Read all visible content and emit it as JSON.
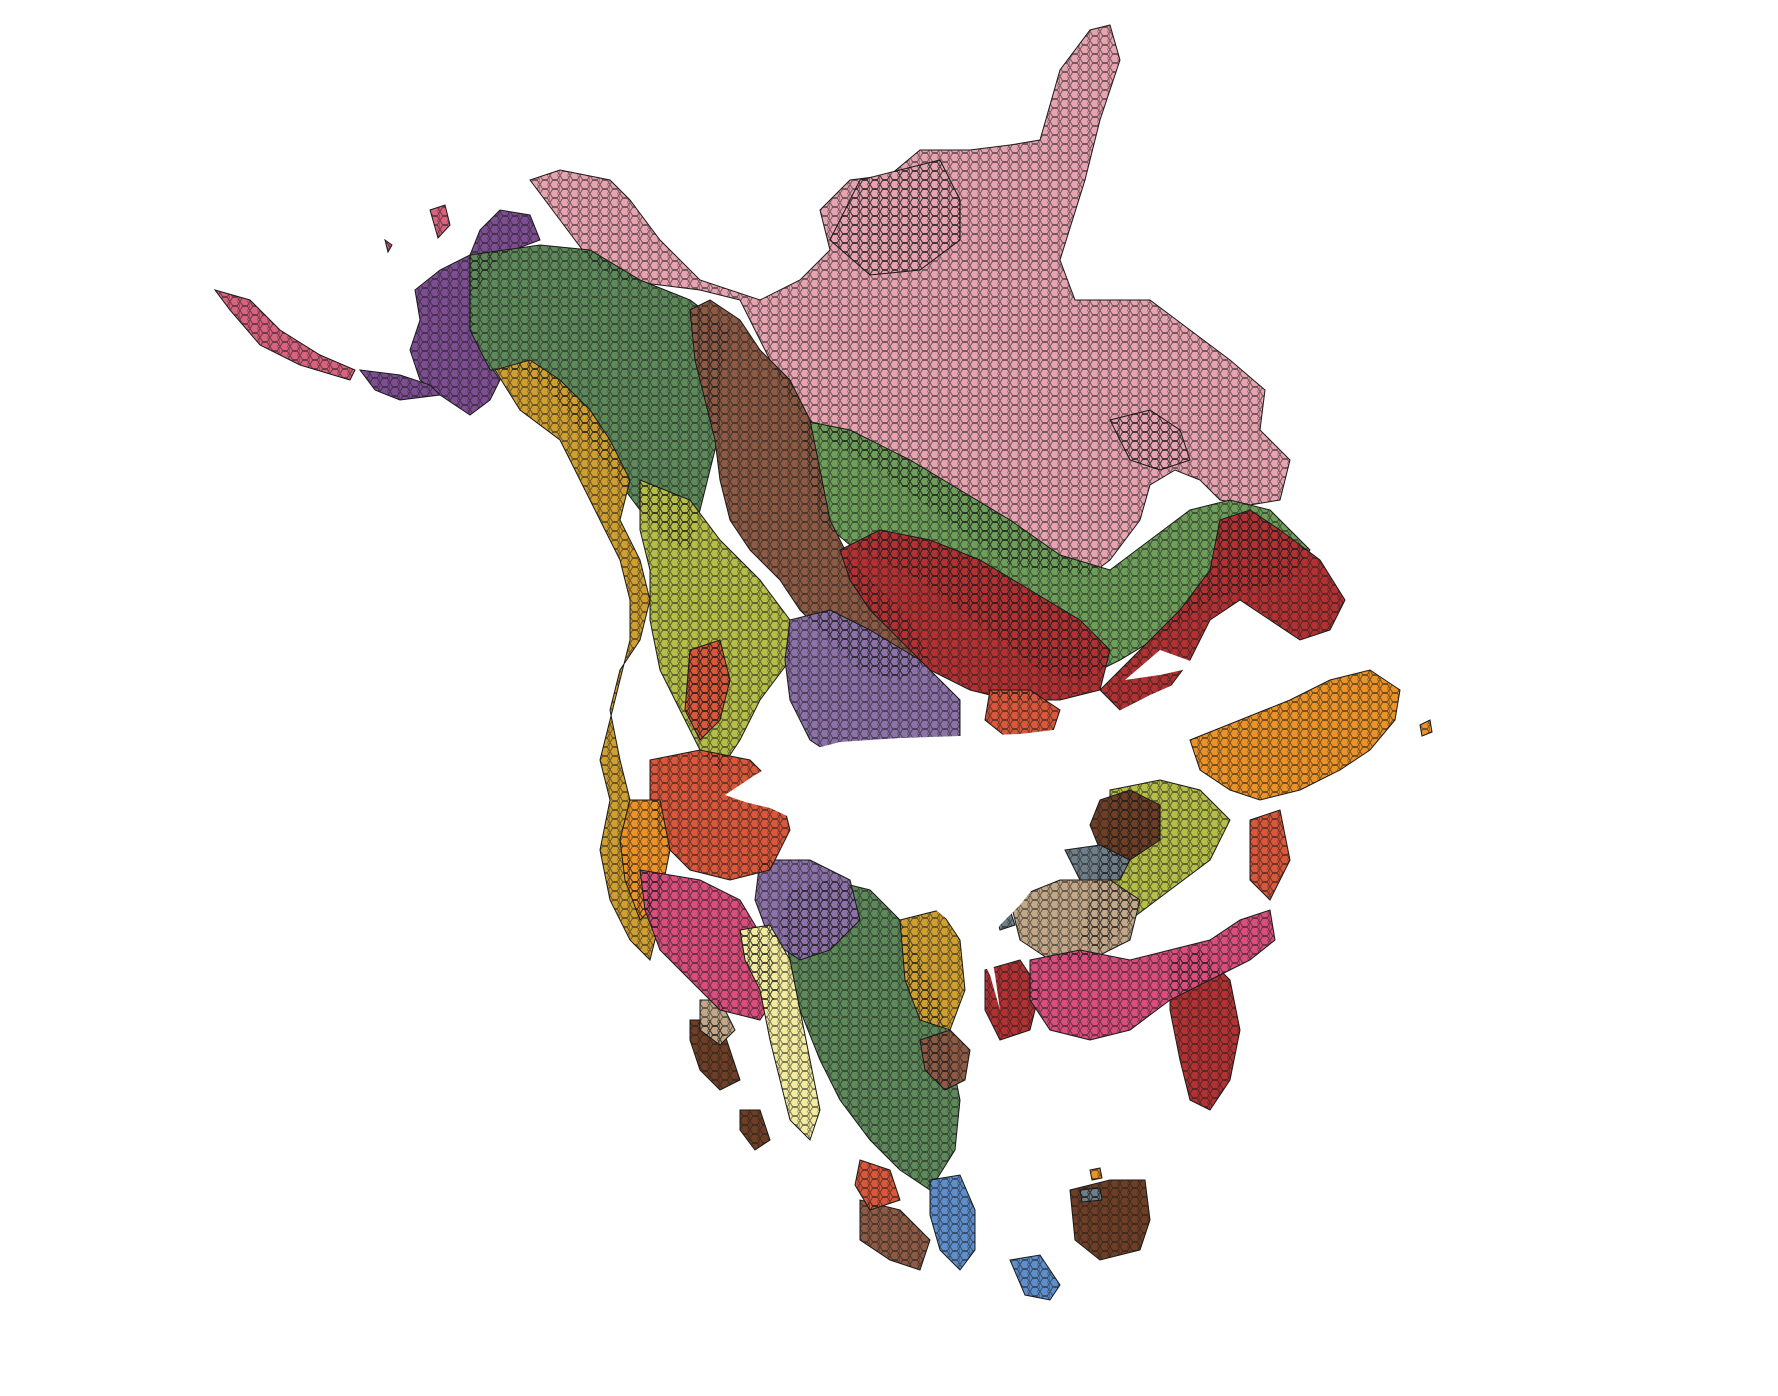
{
  "map": {
    "background": "#ffffff",
    "hex_stroke": "#1a1a1a",
    "regions": [
      {
        "id": "arctic-pink",
        "color": "#E8A3B1"
      },
      {
        "id": "alaska-purple",
        "color": "#7E4E93"
      },
      {
        "id": "aleutian-pink",
        "color": "#D9627F"
      },
      {
        "id": "boreal-green",
        "color": "#5E8A5B"
      },
      {
        "id": "hudson-green",
        "color": "#6E9F5A"
      },
      {
        "id": "rockies-brown",
        "color": "#8C5A45"
      },
      {
        "id": "pacific-gold",
        "color": "#CF9F32"
      },
      {
        "id": "yellowgreen",
        "color": "#B5BE48"
      },
      {
        "id": "prairie-purple",
        "color": "#8C72A8"
      },
      {
        "id": "great-lakes-red",
        "color": "#B23234"
      },
      {
        "id": "red-orange",
        "color": "#D9573A"
      },
      {
        "id": "atlantic-orange",
        "color": "#EB9328"
      },
      {
        "id": "dark-brown",
        "color": "#6E3F26"
      },
      {
        "id": "slate-gray",
        "color": "#6E7F8A"
      },
      {
        "id": "tan",
        "color": "#C2A889"
      },
      {
        "id": "magenta-pink",
        "color": "#D94E7D"
      },
      {
        "id": "cream",
        "color": "#F3EC9F"
      },
      {
        "id": "steel-blue",
        "color": "#5E8FCC"
      }
    ]
  },
  "silhouette": {
    "icon": "bird-silhouette-icon",
    "color": "#ffffff"
  }
}
